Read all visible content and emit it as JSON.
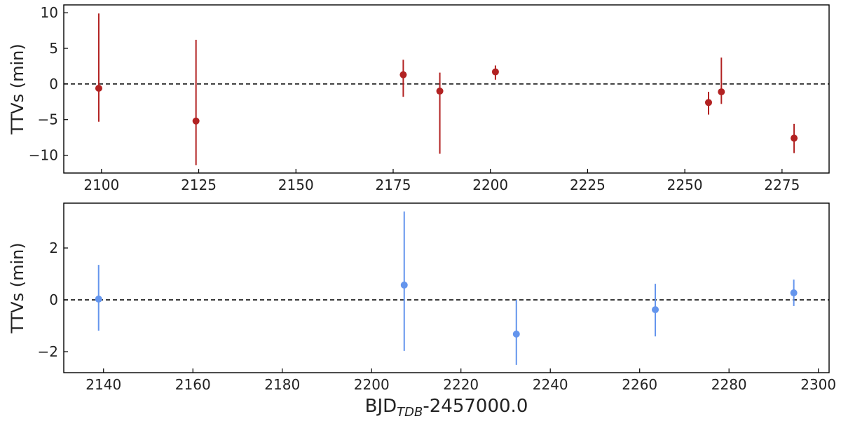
{
  "chart_data": [
    {
      "type": "scatter",
      "ylabel": "TTVs (min)",
      "color": "#b22222",
      "hline": 0,
      "x": [
        2099.3,
        2124.3,
        2177.6,
        2187.0,
        2201.3,
        2256.1,
        2259.4,
        2278.1
      ],
      "values": [
        -0.6,
        -5.2,
        1.3,
        -1.0,
        1.7,
        -2.6,
        -1.1,
        -7.6
      ],
      "yerr_lower": [
        4.7,
        6.2,
        3.1,
        8.8,
        1.1,
        1.7,
        1.7,
        2.1
      ],
      "yerr_upper": [
        10.5,
        11.4,
        2.1,
        2.6,
        0.9,
        1.5,
        4.8,
        2.0
      ],
      "xlim": [
        2090.3,
        2287.1
      ],
      "ylim": [
        -12.5,
        11.1
      ],
      "xticks": [
        2100,
        2125,
        2150,
        2175,
        2200,
        2225,
        2250,
        2275
      ],
      "yticks": [
        {
          "value": -10,
          "label": "−10"
        },
        {
          "value": -5,
          "label": "−5"
        },
        0,
        5,
        10
      ]
    },
    {
      "type": "scatter",
      "ylabel": "TTVs (min)",
      "color": "#6495ed",
      "hline": 0,
      "xlabel": "BJD",
      "xlabel_sub": "TDB",
      "xlabel_suffix": "-2457000.0",
      "x": [
        2138.9,
        2207.3,
        2232.4,
        2263.5,
        2294.5
      ],
      "values": [
        0.03,
        0.57,
        -1.32,
        -0.38,
        0.27
      ],
      "yerr_lower": [
        1.22,
        2.54,
        1.19,
        1.03,
        0.51
      ],
      "yerr_upper": [
        1.32,
        2.84,
        1.32,
        1.0,
        0.51
      ],
      "xlim": [
        2131.1,
        2302.4
      ],
      "ylim": [
        -2.81,
        3.73
      ],
      "xticks": [
        2140,
        2160,
        2180,
        2200,
        2220,
        2240,
        2260,
        2280,
        2300
      ],
      "yticks": [
        {
          "value": -2,
          "label": "−2"
        },
        0,
        2
      ]
    }
  ]
}
